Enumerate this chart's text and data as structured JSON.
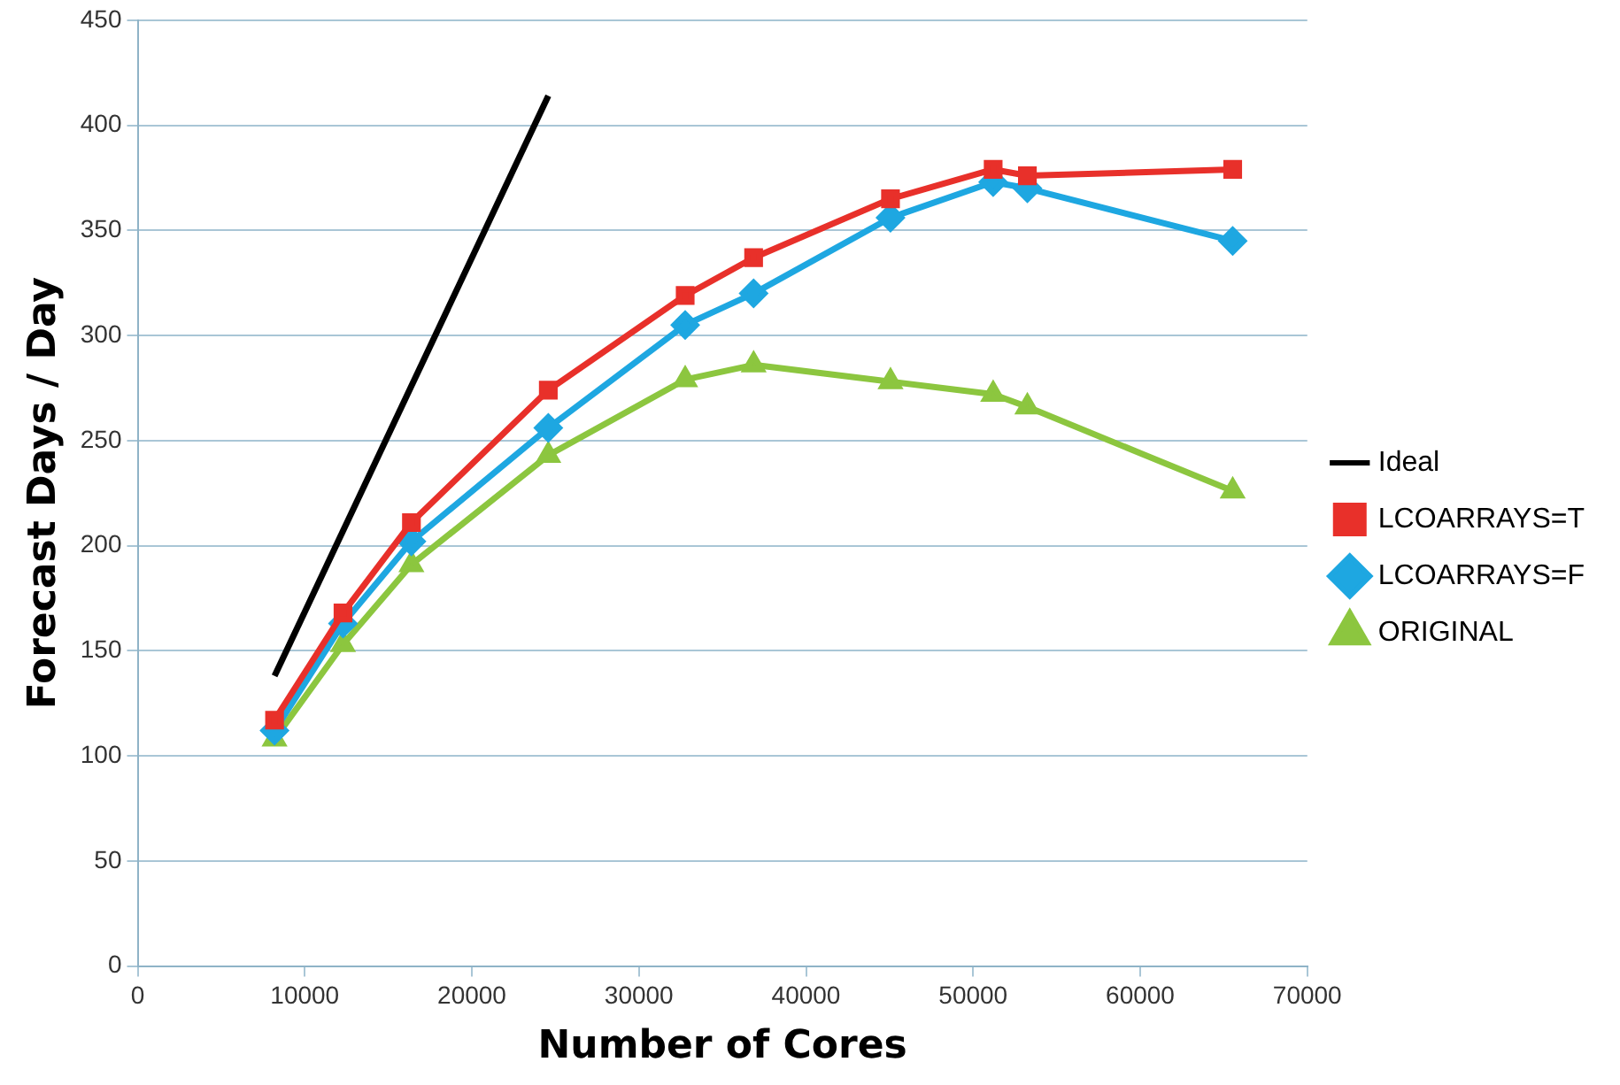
{
  "chart_data": {
    "type": "line",
    "xlabel": "Number of Cores",
    "ylabel": "Forecast Days / Day",
    "xlim": [
      0,
      70000
    ],
    "xticks": [
      0,
      10000,
      20000,
      30000,
      40000,
      50000,
      60000,
      70000
    ],
    "ylim": [
      0,
      450
    ],
    "yticks": [
      0,
      50,
      100,
      150,
      200,
      250,
      300,
      350,
      400,
      450
    ],
    "grid": "y",
    "legend": "right",
    "series": [
      {
        "name": "Ideal",
        "color": "#000000",
        "marker": "none",
        "x": [
          8192,
          24576
        ],
        "values": [
          138,
          414
        ]
      },
      {
        "name": "LCOARRAYS=T",
        "color": "#e8302a",
        "marker": "square",
        "x": [
          8192,
          12288,
          16384,
          24576,
          32768,
          36864,
          45056,
          51200,
          53248,
          65536
        ],
        "values": [
          117,
          168,
          211,
          274,
          319,
          337,
          365,
          379,
          376,
          379
        ]
      },
      {
        "name": "LCOARRAYS=F",
        "color": "#1ea7e1",
        "marker": "diamond",
        "x": [
          8192,
          12288,
          16384,
          24576,
          32768,
          36864,
          45056,
          51200,
          53248,
          65536
        ],
        "values": [
          112,
          163,
          202,
          256,
          305,
          320,
          356,
          373,
          370,
          345
        ]
      },
      {
        "name": "ORIGINAL",
        "color": "#8cc63f",
        "marker": "triangle",
        "x": [
          8192,
          12288,
          16384,
          24576,
          32768,
          36864,
          45056,
          51200,
          53248,
          65536
        ],
        "values": [
          108,
          153,
          191,
          243,
          279,
          286,
          278,
          272,
          266,
          226
        ]
      }
    ]
  }
}
